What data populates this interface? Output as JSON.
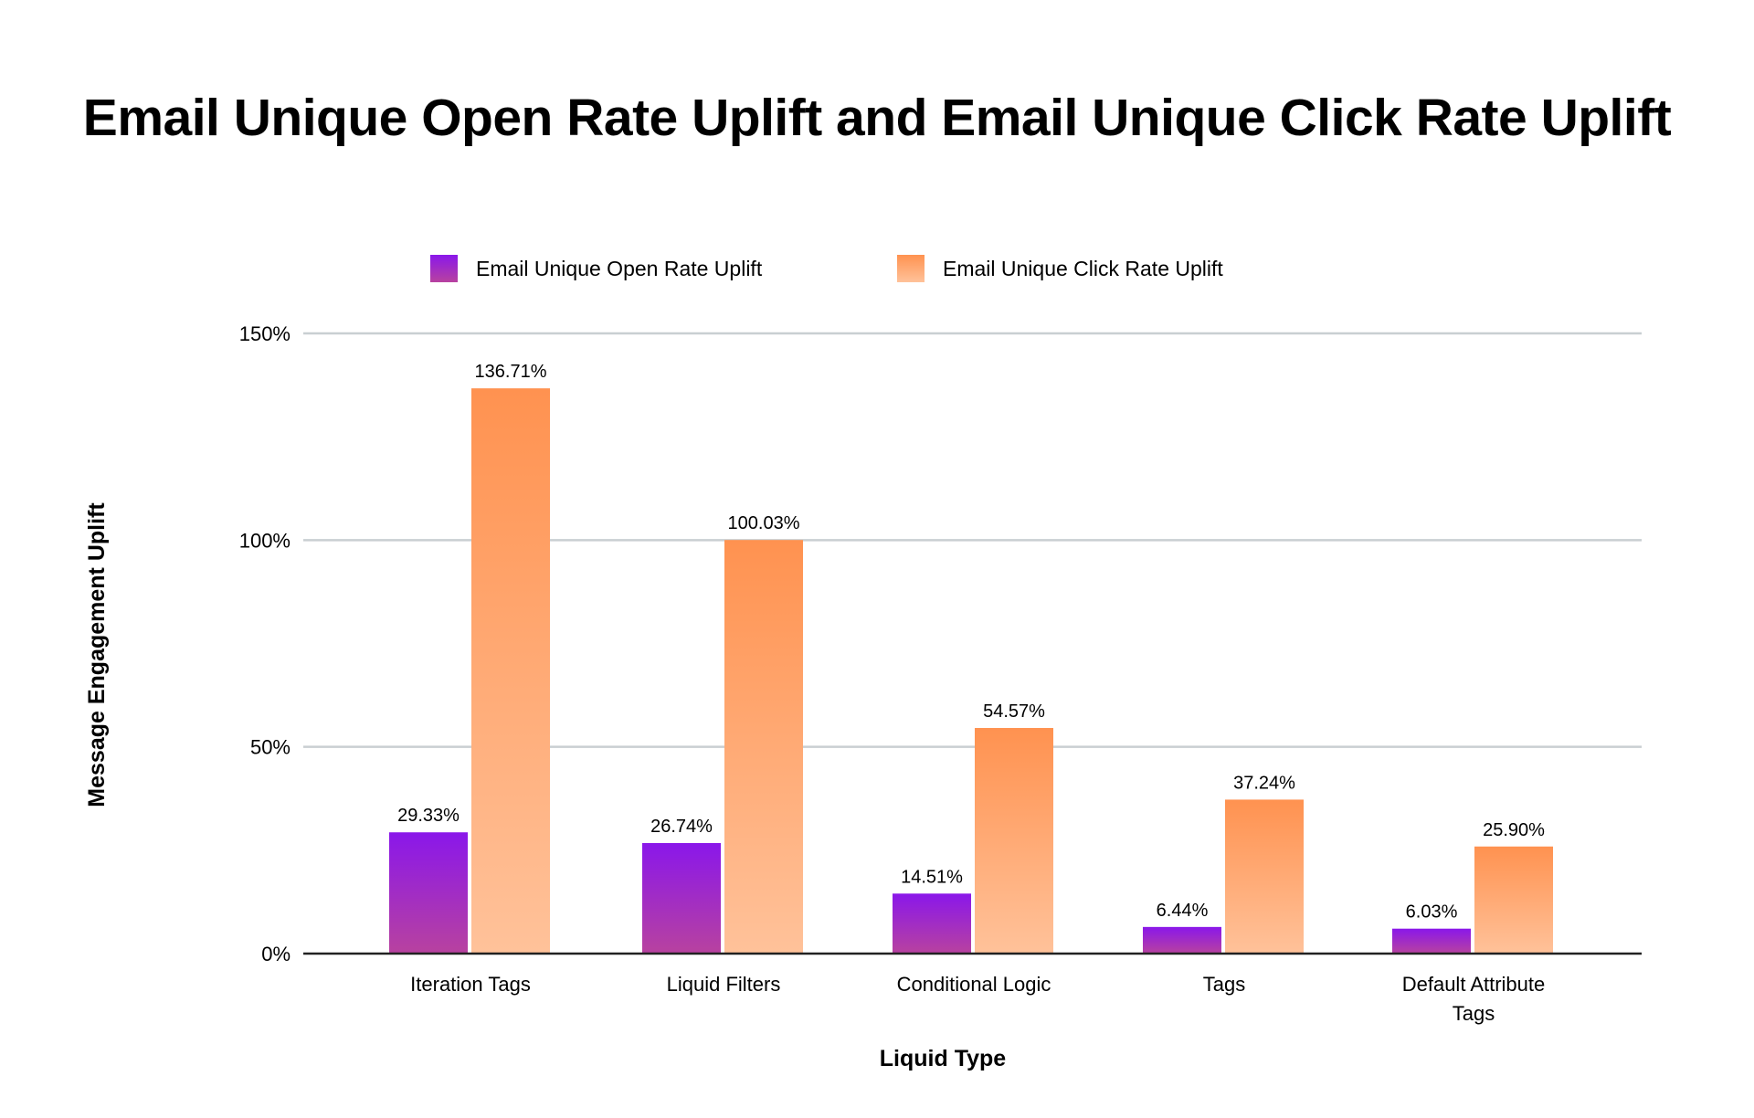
{
  "chart_data": {
    "type": "bar",
    "title": "Email Unique Open Rate Uplift and Email Unique Click Rate Uplift",
    "xlabel": "Liquid Type",
    "ylabel": "Message Engagement Uplift",
    "ylim": [
      0,
      150
    ],
    "yticks": [
      0,
      50,
      100,
      150
    ],
    "ytick_labels": [
      "0%",
      "50%",
      "100%",
      "150%"
    ],
    "grid": true,
    "legend_position": "top-center",
    "categories": [
      "Iteration Tags",
      "Liquid Filters",
      "Conditional Logic",
      "Tags",
      "Default Attribute Tags"
    ],
    "category_lines": [
      [
        "Iteration Tags"
      ],
      [
        "Liquid Filters"
      ],
      [
        "Conditional Logic"
      ],
      [
        "Tags"
      ],
      [
        "Default Attribute",
        "Tags"
      ]
    ],
    "series": [
      {
        "name": "Email Unique Open Rate Uplift",
        "values": [
          29.33,
          26.74,
          14.51,
          6.44,
          6.03
        ],
        "labels": [
          "29.33%",
          "26.74%",
          "14.51%",
          "6.44%",
          "6.03%"
        ],
        "color_top": "#8a17ea",
        "color_bottom": "#b8429f"
      },
      {
        "name": "Email Unique Click Rate Uplift",
        "values": [
          136.71,
          100.03,
          54.57,
          37.24,
          25.9
        ],
        "labels": [
          "136.71%",
          "100.03%",
          "54.57%",
          "37.24%",
          "25.90%"
        ],
        "color_top": "#ff9250",
        "color_bottom": "#ffc29a"
      }
    ]
  }
}
